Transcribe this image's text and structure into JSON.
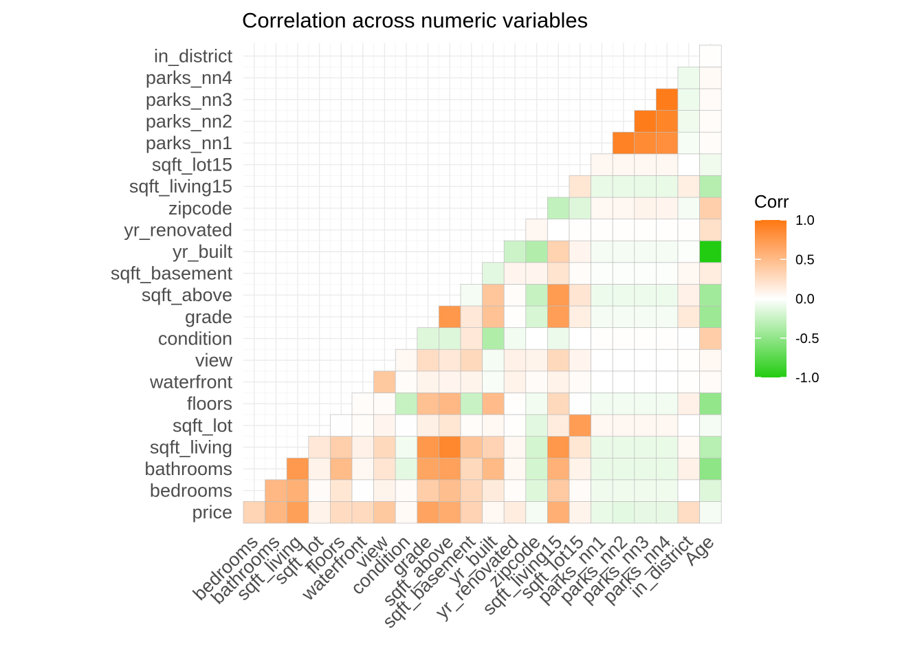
{
  "chart_data": {
    "type": "heatmap",
    "title": "Correlation across numeric variables",
    "xlabel": "",
    "ylabel": "",
    "x_variables": [
      "bedrooms",
      "bathrooms",
      "sqft_living",
      "sqft_lot",
      "floors",
      "waterfront",
      "view",
      "condition",
      "grade",
      "sqft_above",
      "sqft_basement",
      "yr_built",
      "yr_renovated",
      "zipcode",
      "sqft_living15",
      "sqft_lot15",
      "parks_nn1",
      "parks_nn2",
      "parks_nn3",
      "parks_nn4",
      "in_district",
      "Age"
    ],
    "y_variables": [
      "price",
      "bedrooms",
      "bathrooms",
      "sqft_living",
      "sqft_lot",
      "floors",
      "waterfront",
      "view",
      "condition",
      "grade",
      "sqft_above",
      "sqft_basement",
      "yr_built",
      "yr_renovated",
      "zipcode",
      "sqft_living15",
      "sqft_lot15",
      "parks_nn1",
      "parks_nn2",
      "parks_nn3",
      "parks_nn4",
      "in_district"
    ],
    "matrix_note": "values[row][col] correlation of y_variables[row] with x_variables[col]; null = not shown (lower triangle layout)",
    "values": [
      [
        0.31,
        0.53,
        0.7,
        0.09,
        0.26,
        0.27,
        0.4,
        0.04,
        0.67,
        0.61,
        0.32,
        0.05,
        0.13,
        -0.05,
        0.59,
        0.08,
        -0.1,
        -0.12,
        -0.11,
        -0.11,
        0.25,
        -0.05
      ],
      [
        null,
        0.52,
        0.58,
        0.03,
        0.18,
        -0.01,
        0.08,
        0.03,
        0.36,
        0.48,
        0.3,
        0.15,
        0.02,
        -0.15,
        0.39,
        0.03,
        -0.07,
        -0.07,
        -0.07,
        -0.07,
        0.0,
        -0.15
      ],
      [
        null,
        null,
        0.75,
        0.09,
        0.5,
        0.06,
        0.19,
        -0.12,
        0.66,
        0.69,
        0.28,
        0.51,
        0.05,
        -0.2,
        0.57,
        0.09,
        -0.1,
        -0.1,
        -0.1,
        -0.1,
        0.1,
        -0.51
      ],
      [
        null,
        null,
        null,
        0.17,
        0.35,
        0.1,
        0.28,
        -0.06,
        0.76,
        0.88,
        0.43,
        0.32,
        0.06,
        -0.2,
        0.76,
        0.18,
        -0.1,
        -0.1,
        -0.1,
        -0.1,
        0.05,
        -0.32
      ],
      [
        null,
        null,
        null,
        null,
        -0.01,
        0.02,
        0.07,
        -0.01,
        0.11,
        0.18,
        0.02,
        0.05,
        0.01,
        -0.13,
        0.14,
        0.72,
        0.06,
        0.06,
        0.06,
        0.06,
        0.0,
        -0.05
      ],
      [
        null,
        null,
        null,
        null,
        null,
        0.02,
        0.03,
        -0.26,
        0.46,
        0.52,
        -0.25,
        0.49,
        0.01,
        -0.06,
        0.28,
        -0.01,
        -0.06,
        -0.06,
        -0.06,
        -0.06,
        0.1,
        -0.49
      ],
      [
        null,
        null,
        null,
        null,
        null,
        null,
        0.4,
        0.02,
        0.08,
        0.07,
        0.08,
        -0.03,
        0.09,
        0.03,
        0.09,
        0.03,
        0.0,
        0.0,
        0.0,
        0.0,
        0.01,
        0.03
      ],
      [
        null,
        null,
        null,
        null,
        null,
        null,
        null,
        0.05,
        0.25,
        0.17,
        0.28,
        -0.05,
        0.1,
        0.08,
        0.28,
        0.07,
        0.0,
        0.0,
        0.0,
        0.0,
        0.01,
        0.05
      ],
      [
        null,
        null,
        null,
        null,
        null,
        null,
        null,
        null,
        -0.15,
        -0.16,
        0.17,
        -0.36,
        -0.06,
        0.0,
        -0.09,
        -0.0,
        0.01,
        0.01,
        0.01,
        0.01,
        -0.01,
        0.36
      ],
      [
        null,
        null,
        null,
        null,
        null,
        null,
        null,
        null,
        null,
        0.76,
        0.17,
        0.45,
        0.01,
        -0.18,
        0.71,
        0.12,
        -0.05,
        -0.05,
        -0.05,
        -0.05,
        0.16,
        -0.45
      ],
      [
        null,
        null,
        null,
        null,
        null,
        null,
        null,
        null,
        null,
        null,
        -0.05,
        0.42,
        0.02,
        -0.26,
        0.73,
        0.19,
        -0.08,
        -0.08,
        -0.08,
        -0.08,
        0.1,
        -0.42
      ],
      [
        null,
        null,
        null,
        null,
        null,
        null,
        null,
        null,
        null,
        null,
        null,
        -0.13,
        0.07,
        0.07,
        0.2,
        0.02,
        -0.02,
        -0.02,
        -0.02,
        -0.02,
        0.05,
        0.13
      ],
      [
        null,
        null,
        null,
        null,
        null,
        null,
        null,
        null,
        null,
        null,
        null,
        null,
        -0.23,
        -0.35,
        0.33,
        0.07,
        -0.05,
        -0.05,
        -0.05,
        -0.05,
        -0.02,
        -1.0
      ],
      [
        null,
        null,
        null,
        null,
        null,
        null,
        null,
        null,
        null,
        null,
        null,
        null,
        null,
        0.06,
        -0.0,
        0.01,
        0.01,
        0.01,
        0.01,
        0.01,
        0.01,
        0.23
      ],
      [
        null,
        null,
        null,
        null,
        null,
        null,
        null,
        null,
        null,
        null,
        null,
        null,
        null,
        null,
        -0.28,
        -0.15,
        0.05,
        0.06,
        0.08,
        0.07,
        -0.05,
        0.35
      ],
      [
        null,
        null,
        null,
        null,
        null,
        null,
        null,
        null,
        null,
        null,
        null,
        null,
        null,
        null,
        null,
        0.18,
        -0.1,
        -0.1,
        -0.1,
        -0.1,
        0.12,
        -0.33
      ],
      [
        null,
        null,
        null,
        null,
        null,
        null,
        null,
        null,
        null,
        null,
        null,
        null,
        null,
        null,
        null,
        null,
        0.06,
        0.06,
        0.06,
        0.06,
        -0.0,
        -0.07
      ],
      [
        null,
        null,
        null,
        null,
        null,
        null,
        null,
        null,
        null,
        null,
        null,
        null,
        null,
        null,
        null,
        null,
        null,
        0.92,
        0.85,
        0.82,
        -0.04,
        0.02
      ],
      [
        null,
        null,
        null,
        null,
        null,
        null,
        null,
        null,
        null,
        null,
        null,
        null,
        null,
        null,
        null,
        null,
        null,
        null,
        0.96,
        0.9,
        -0.07,
        0.02
      ],
      [
        null,
        null,
        null,
        null,
        null,
        null,
        null,
        null,
        null,
        null,
        null,
        null,
        null,
        null,
        null,
        null,
        null,
        null,
        null,
        0.96,
        -0.08,
        0.03
      ],
      [
        null,
        null,
        null,
        null,
        null,
        null,
        null,
        null,
        null,
        null,
        null,
        null,
        null,
        null,
        null,
        null,
        null,
        null,
        null,
        null,
        -0.08,
        0.04
      ],
      [
        null,
        null,
        null,
        null,
        null,
        null,
        null,
        null,
        null,
        null,
        null,
        null,
        null,
        null,
        null,
        null,
        null,
        null,
        null,
        null,
        null,
        0.01
      ]
    ],
    "color_scale": {
      "low": "#22cc11",
      "mid": "#ffffff",
      "high": "#ff7711",
      "limits": [
        -1,
        1
      ]
    },
    "legend": {
      "title": "Corr",
      "position": "right",
      "ticks": [
        1.0,
        0.5,
        0.0,
        -0.5,
        -1.0
      ],
      "tick_labels": [
        "1.0",
        "0.5",
        "0.0",
        "-0.5",
        "-1.0"
      ]
    },
    "grid": true
  }
}
